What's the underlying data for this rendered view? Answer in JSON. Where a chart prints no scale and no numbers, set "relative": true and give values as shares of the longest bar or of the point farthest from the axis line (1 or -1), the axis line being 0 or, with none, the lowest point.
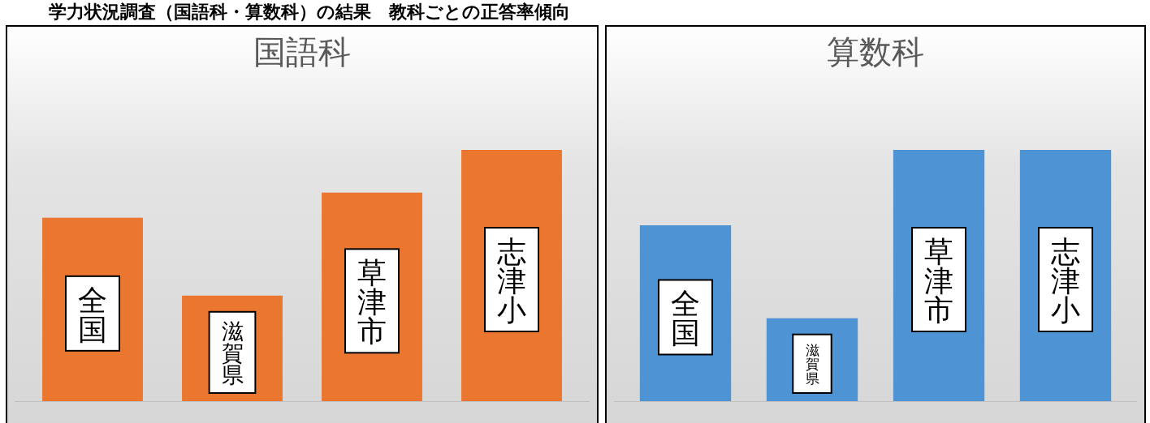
{
  "chart_data": [
    {
      "type": "bar",
      "title": "国語科",
      "relative": true,
      "annotations": [
        "学力状況調査（国語科・算数科）の結果　教科ごとの正答率傾向"
      ],
      "categories": [
        "全国",
        "滋賀県",
        "草津市",
        "志津小"
      ],
      "values": [
        0.73,
        0.42,
        0.83,
        1
      ],
      "color": "#ea7630"
    },
    {
      "type": "bar",
      "title": "算数科",
      "relative": true,
      "categories": [
        "全国",
        "滋賀県",
        "草津市",
        "志津小"
      ],
      "values": [
        0.7,
        0.33,
        1,
        1
      ],
      "color": "#4e93d3"
    }
  ]
}
